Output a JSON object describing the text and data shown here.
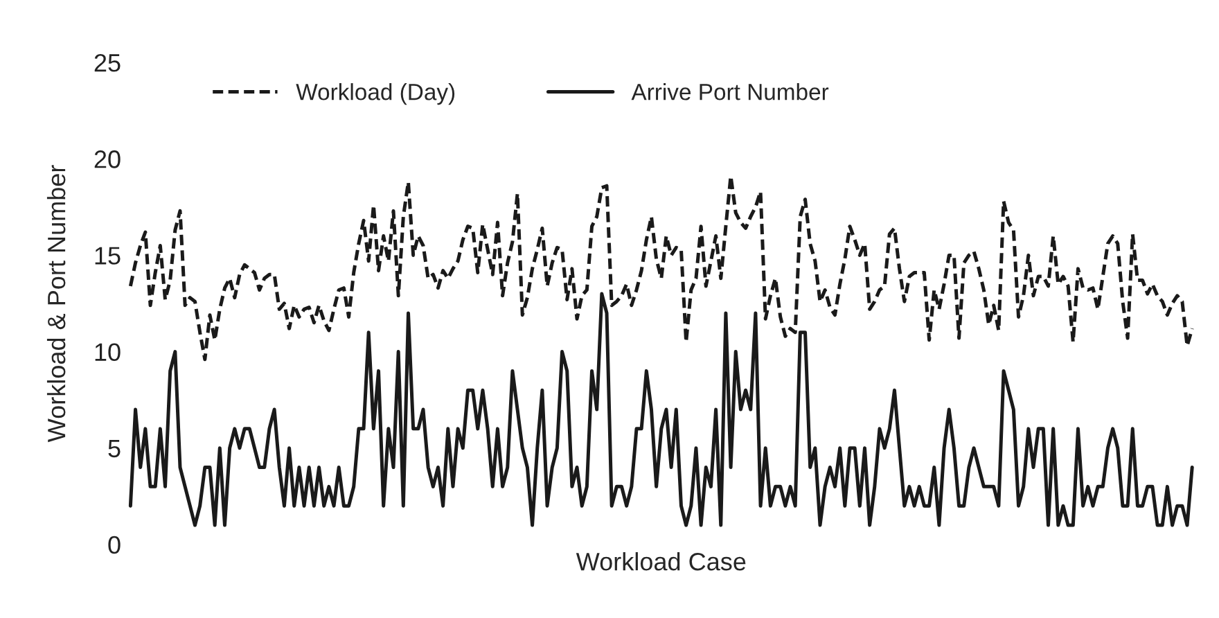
{
  "chart_data": {
    "type": "line",
    "xlabel": "Workload Case",
    "ylabel": "Workload & Port Number",
    "ylim": [
      0,
      25
    ],
    "yticks": [
      0,
      5,
      10,
      15,
      20,
      25
    ],
    "grid": false,
    "legend": "top left",
    "tick_labels": "y",
    "marker": "none",
    "categories": [
      null,
      null,
      null,
      null,
      null,
      null,
      null,
      null,
      null,
      null,
      null,
      null,
      null,
      null,
      null,
      null,
      null,
      null,
      null,
      null,
      null,
      null,
      null,
      null,
      null,
      null,
      null,
      null,
      null,
      null,
      null,
      null,
      null,
      null,
      null,
      null,
      null,
      null,
      null,
      null,
      null,
      null,
      null,
      null,
      null,
      null,
      null,
      null,
      null,
      null,
      null,
      null,
      null,
      null,
      null,
      null,
      null,
      null,
      null,
      null,
      null,
      null,
      null,
      null,
      null,
      null,
      null,
      null,
      null,
      null,
      null,
      null,
      null,
      null,
      null,
      null,
      null,
      null,
      null,
      null,
      null,
      null,
      null,
      null,
      null,
      null,
      null,
      null,
      null,
      null,
      null,
      null,
      null,
      null,
      null,
      null,
      null,
      null,
      null,
      null,
      null,
      null,
      null,
      null,
      null,
      null,
      null,
      null,
      null,
      null,
      null,
      null,
      null,
      null,
      null,
      null,
      null,
      null,
      null,
      null,
      null,
      null,
      null,
      null,
      null,
      null,
      null,
      null,
      null,
      null,
      null,
      null,
      null,
      null,
      null,
      null,
      null,
      null,
      null,
      null,
      null,
      null,
      null,
      null,
      null,
      null,
      null,
      null,
      null,
      null,
      null,
      null,
      null,
      null,
      null,
      null,
      null,
      null,
      null,
      null,
      null,
      null,
      null,
      null,
      null,
      null,
      null,
      null,
      null,
      null,
      null,
      null,
      null,
      null,
      null,
      null,
      null,
      null,
      null,
      null,
      null,
      null,
      null,
      null,
      null,
      null,
      null,
      null,
      null,
      null,
      null,
      null,
      null,
      null,
      null,
      null,
      null,
      null,
      null,
      null,
      null,
      null,
      null,
      null,
      null,
      null,
      null,
      null,
      null,
      null,
      null,
      null,
      null,
      null,
      null
    ],
    "series": [
      {
        "name": "Workload (Day)",
        "color": "#1a1a1a",
        "line_style": "dashed",
        "values": [
          13.4,
          14.6,
          15.5,
          16.2,
          12.4,
          14.1,
          15.5,
          12.7,
          13.7,
          16.3,
          17.3,
          12.4,
          12.8,
          12.6,
          11,
          9.6,
          11.9,
          10.6,
          12.2,
          13.3,
          13.8,
          12.8,
          14,
          14.5,
          14.3,
          14.1,
          13.2,
          13.8,
          14,
          14,
          12.2,
          12.5,
          11.2,
          12.4,
          11.8,
          12.2,
          12.3,
          11.5,
          12.4,
          11.6,
          11.1,
          12.2,
          13.2,
          13.3,
          11.8,
          14.1,
          15.6,
          16.8,
          14.7,
          17.6,
          14.2,
          16,
          14.7,
          17.3,
          12.9,
          17,
          18.8,
          15,
          16,
          15.5,
          13.8,
          14,
          13.3,
          14.2,
          13.8,
          14.3,
          14.7,
          15.8,
          16.5,
          16.4,
          14.1,
          16.6,
          15.3,
          14,
          16.7,
          12.9,
          14.6,
          15.7,
          18.2,
          11.9,
          12.8,
          14.3,
          15.3,
          16.4,
          13.4,
          14.6,
          15.4,
          15.3,
          12.7,
          14.3,
          11.7,
          12.9,
          13.2,
          16.5,
          17,
          18.5,
          18.6,
          12.4,
          12.6,
          12.9,
          13.5,
          12.4,
          13.2,
          14.2,
          15.8,
          17,
          14.8,
          13.8,
          16,
          15,
          15.4,
          15.3,
          10.5,
          13.2,
          13.8,
          16.5,
          13.4,
          14.7,
          16,
          13.8,
          16.5,
          19.1,
          17.2,
          16.7,
          16.4,
          17,
          17.5,
          18.3,
          11.7,
          12.9,
          13.8,
          11.8,
          10.8,
          11.2,
          11,
          17,
          17.9,
          15.6,
          14.7,
          12.6,
          13.2,
          12.3,
          11.9,
          13.5,
          14.8,
          16.5,
          15.8,
          15,
          15.6,
          12.2,
          12.6,
          13.2,
          13.4,
          16.1,
          16.4,
          14.3,
          12.6,
          13.9,
          14.1,
          14.1,
          14.1,
          10.6,
          13.2,
          12.2,
          13.5,
          15,
          15,
          10.7,
          14.6,
          15,
          15.2,
          14.3,
          13.2,
          11.4,
          12.4,
          11.1,
          17.8,
          16.7,
          16.3,
          11.8,
          12.9,
          15,
          12.9,
          13.9,
          13.9,
          13.4,
          16,
          13.5,
          13.9,
          13.4,
          10.5,
          14.3,
          13.3,
          13.2,
          13.3,
          12.2,
          13.9,
          15.6,
          16,
          15.6,
          12.6,
          10.7,
          16.1,
          13.7,
          13.7,
          13,
          13.5,
          12.9,
          12.6,
          11.9,
          12.5,
          12.9,
          12.6,
          10.3,
          11.2
        ]
      },
      {
        "name": "Arrive Port Number",
        "color": "#1a1a1a",
        "line_style": "solid",
        "values": [
          2,
          7,
          4,
          6,
          3,
          3,
          6,
          3,
          9,
          10,
          4,
          3,
          2,
          1,
          2,
          4,
          4,
          1,
          5,
          1,
          5,
          6,
          5,
          6,
          6,
          5,
          4,
          4,
          6,
          7,
          4,
          2,
          5,
          2,
          4,
          2,
          4,
          2,
          4,
          2,
          3,
          2,
          4,
          2,
          2,
          3,
          6,
          6,
          11,
          6,
          9,
          2,
          6,
          4,
          10,
          2,
          12,
          6,
          6,
          7,
          4,
          3,
          4,
          2,
          6,
          3,
          6,
          5,
          8,
          8,
          6,
          8,
          6,
          3,
          6,
          3,
          4,
          9,
          7,
          5,
          4,
          1,
          5,
          8,
          2,
          4,
          5,
          10,
          9,
          3,
          4,
          2,
          3,
          9,
          7,
          13,
          12,
          2,
          3,
          3,
          2,
          3,
          6,
          6,
          9,
          7,
          3,
          6,
          7,
          4,
          7,
          2,
          1,
          2,
          5,
          1,
          4,
          3,
          7,
          1,
          12,
          4,
          10,
          7,
          8,
          7,
          12,
          2,
          5,
          2,
          3,
          3,
          2,
          3,
          2,
          11,
          11,
          4,
          5,
          1,
          3,
          4,
          3,
          5,
          2,
          5,
          5,
          2,
          5,
          1,
          3,
          6,
          5,
          6,
          8,
          5,
          2,
          3,
          2,
          3,
          2,
          2,
          4,
          1,
          5,
          7,
          5,
          2,
          2,
          4,
          5,
          4,
          3,
          3,
          3,
          2,
          9,
          8,
          7,
          2,
          3,
          6,
          4,
          6,
          6,
          1,
          6,
          1,
          2,
          1,
          1,
          6,
          2,
          3,
          2,
          3,
          3,
          5,
          6,
          5,
          2,
          2,
          6,
          2,
          2,
          3,
          3,
          1,
          1,
          3,
          1,
          2,
          2,
          1,
          4
        ]
      }
    ]
  }
}
